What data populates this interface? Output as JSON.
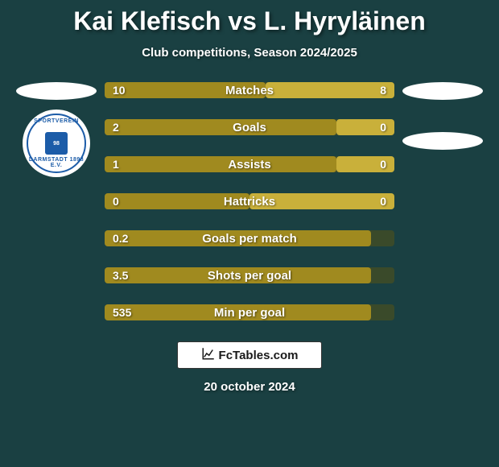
{
  "title": "Kai Klefisch vs L. Hyryläinen",
  "subtitle": "Club competitions, Season 2024/2025",
  "date": "20 october 2024",
  "brand": "FcTables.com",
  "colors": {
    "background": "#1a4042",
    "bar_left": "#a08a1f",
    "bar_right": "#c9b03a",
    "bar_track": "#3a4a2a",
    "text": "#ffffff",
    "logo_blue": "#1c5ca8"
  },
  "logo": {
    "top_text": "SPORTVEREIN",
    "bottom_text": "DARMSTADT 1898 E.V."
  },
  "stats": [
    {
      "label": "Matches",
      "left_val": "10",
      "right_val": "8",
      "left_pct": 55.5,
      "right_pct": 44.5
    },
    {
      "label": "Goals",
      "left_val": "2",
      "right_val": "0",
      "left_pct": 80,
      "right_pct": 20
    },
    {
      "label": "Assists",
      "left_val": "1",
      "right_val": "0",
      "left_pct": 80,
      "right_pct": 20
    },
    {
      "label": "Hattricks",
      "left_val": "0",
      "right_val": "0",
      "left_pct": 50,
      "right_pct": 50
    },
    {
      "label": "Goals per match",
      "left_val": "0.2",
      "right_val": "",
      "left_pct": 92,
      "right_pct": 0
    },
    {
      "label": "Shots per goal",
      "left_val": "3.5",
      "right_val": "",
      "left_pct": 92,
      "right_pct": 0
    },
    {
      "label": "Min per goal",
      "left_val": "535",
      "right_val": "",
      "left_pct": 92,
      "right_pct": 0
    }
  ]
}
